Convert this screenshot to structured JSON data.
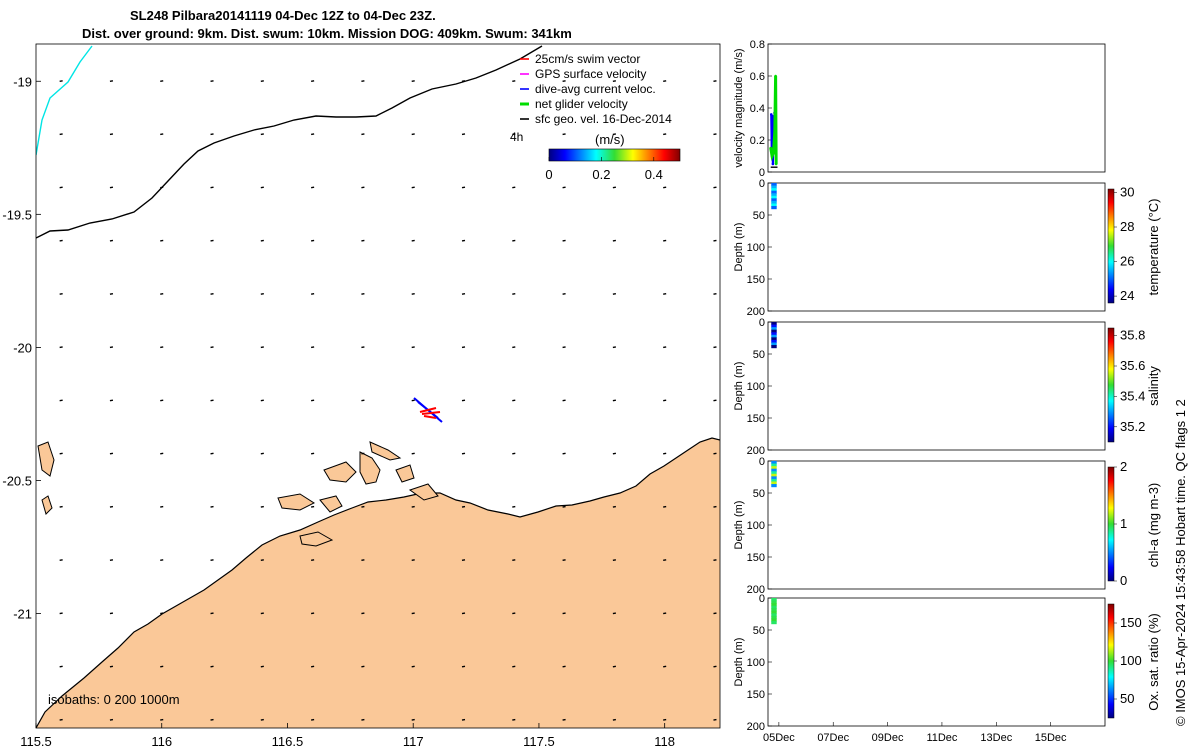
{
  "title_line1": "SL248 Pilbara20141119 04-Dec 12Z to 04-Dec 23Z.",
  "title_line2": "Dist. over ground: 9km. Dist. swum: 10km. Mission DOG: 409km. Swum: 341km",
  "footer_credit": "© IMOS 15-Apr-2024 15:43:58 Hobart time. QC flags 1  2",
  "colors": {
    "land": "#fac898",
    "swim_vector": "#ff0000",
    "gps_velocity": "#ff00ff",
    "dive_avg_current": "#0000ff",
    "net_glider_velocity": "#00dd00",
    "sfc_geo_vel": "#000000",
    "isobath_0": "#000000",
    "isobath_200": "#00e5e5"
  },
  "map": {
    "xticks": [
      "115.5",
      "116",
      "116.5",
      "117",
      "117.5",
      "118"
    ],
    "yticks": [
      "-19",
      "-19.5",
      "-20",
      "-20.5",
      "-21"
    ],
    "xlim": [
      115.5,
      118.22
    ],
    "ylim": [
      -21.43,
      -18.86
    ],
    "legend": [
      {
        "label": "25cm/s swim vector",
        "color_key": "swim_vector"
      },
      {
        "label": "GPS surface velocity",
        "color_key": "gps_velocity"
      },
      {
        "label": "dive-avg current veloc.",
        "color_key": "dive_avg_current"
      },
      {
        "label": "net glider velocity",
        "color_key": "net_glider_velocity"
      },
      {
        "label": "sfc geo. vel. 16-Dec-2014",
        "color_key": "sfc_geo_vel"
      }
    ],
    "colorbar_label": "(m/s)",
    "colorbar_ticks": [
      "0",
      "0.2",
      "0.4"
    ],
    "time_step_label": "4h",
    "isobaths_label": "isobaths: 0   200  1000m"
  },
  "chart_data": [
    {
      "type": "line",
      "name": "velocity magnitude",
      "ylabel": "velocity magnitude (m/s)",
      "ylim": [
        0,
        0.8
      ],
      "yticks": [
        "0",
        "0.2",
        "0.4",
        "0.6",
        "0.8"
      ],
      "xlim_days": [
        4.6,
        17.0
      ],
      "series": [
        {
          "color_key": "dive_avg_current",
          "x": [
            4.72,
            4.74,
            4.76,
            4.78,
            4.8,
            4.82,
            4.84,
            4.86
          ],
          "y": [
            0.36,
            0.12,
            0.35,
            0.05,
            0.34,
            0.15,
            0.37,
            0.2
          ]
        },
        {
          "color_key": "net_glider_velocity",
          "x": [
            4.7,
            4.75,
            4.8,
            4.85,
            4.88,
            4.9
          ],
          "y": [
            0.15,
            0.1,
            0.12,
            0.25,
            0.6,
            0.05
          ]
        }
      ]
    },
    {
      "type": "scatter",
      "name": "temperature",
      "ylabel": "Depth (m)",
      "clabel": "temperature (°C)",
      "ylim": [
        200,
        0
      ],
      "yticks": [
        "0",
        "50",
        "100",
        "150",
        "200"
      ],
      "cticks": [
        "24",
        "26",
        "28",
        "30"
      ],
      "clim": [
        23.6,
        30.2
      ],
      "profile_depth": [
        0,
        40
      ],
      "value_range": [
        25.0,
        26.0
      ]
    },
    {
      "type": "scatter",
      "name": "salinity",
      "ylabel": "Depth (m)",
      "clabel": "salinity",
      "ylim": [
        200,
        0
      ],
      "yticks": [
        "0",
        "50",
        "100",
        "150",
        "200"
      ],
      "cticks": [
        "35.2",
        "35.4",
        "35.6",
        "35.8"
      ],
      "clim": [
        35.1,
        35.85
      ],
      "profile_depth": [
        0,
        40
      ],
      "value_range": [
        35.1,
        35.3
      ]
    },
    {
      "type": "scatter",
      "name": "chl-a",
      "ylabel": "Depth (m)",
      "clabel": "chl-a (mg m-3)",
      "ylim": [
        200,
        0
      ],
      "yticks": [
        "0",
        "50",
        "100",
        "150",
        "200"
      ],
      "cticks": [
        "0",
        "1",
        "2"
      ],
      "clim": [
        0,
        2
      ],
      "profile_depth": [
        0,
        40
      ],
      "value_range": [
        0.5,
        1.2
      ]
    },
    {
      "type": "scatter",
      "name": "oxygen saturation",
      "ylabel": "Depth (m)",
      "clabel": "Ox. sat. ratio (%)",
      "ylim": [
        200,
        0
      ],
      "yticks": [
        "0",
        "50",
        "100",
        "150",
        "200"
      ],
      "cticks": [
        "50",
        "100",
        "150"
      ],
      "clim": [
        25,
        175
      ],
      "profile_depth": [
        0,
        40
      ],
      "value_range": [
        95,
        100
      ]
    }
  ],
  "time_ticks": [
    "05Dec",
    "07Dec",
    "09Dec",
    "11Dec",
    "13Dec",
    "15Dec"
  ],
  "time_tick_days": [
    5,
    7,
    9,
    11,
    13,
    15
  ]
}
